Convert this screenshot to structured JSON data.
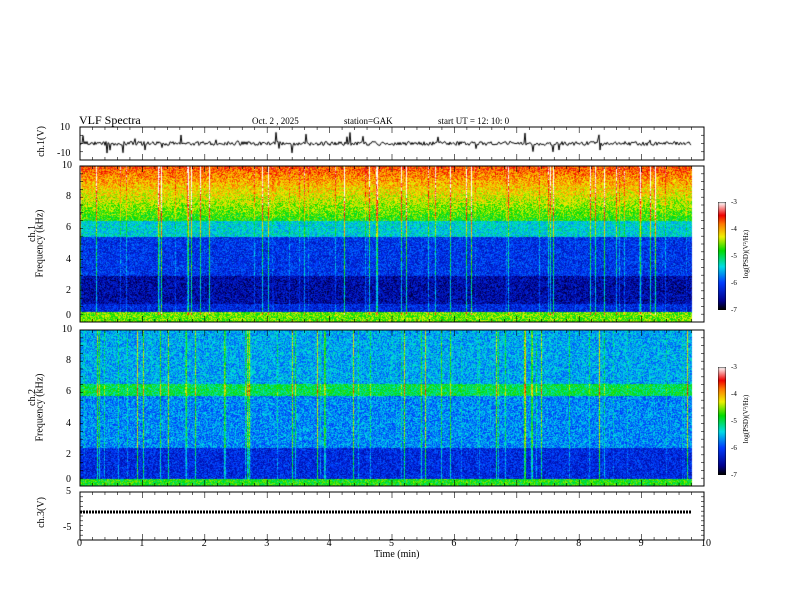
{
  "header": {
    "title": "VLF  Spectra",
    "date": "Oct. 2  , 2025",
    "station": "station=GAK",
    "start": "start  UT  =   12: 10: 0"
  },
  "chart_data": [
    {
      "type": "line",
      "name": "ch1-waveform",
      "ylabel": "ch.1(V)",
      "ylim": [
        -10,
        10
      ],
      "yticks": [
        "10",
        "-10"
      ],
      "xlim": [
        0,
        10
      ],
      "baseline_value": 0,
      "data_end_min": 9.8
    },
    {
      "type": "heatmap",
      "name": "ch1-spectrogram",
      "ylabel": "ch.1\nFrequency  (kHz)",
      "ylabel_ch": "ch.1",
      "ylabel_freq": "Frequency  (kHz)",
      "ylim": [
        0,
        10
      ],
      "yticks": [
        "0",
        "2",
        "4",
        "6",
        "8",
        "10"
      ],
      "xlim": [
        0,
        10
      ],
      "colorbar": {
        "label": "log(PSD)(V²/Hz)",
        "range": [
          -7,
          -3
        ],
        "ticks": [
          "-3",
          "-4",
          "-5",
          "-6",
          "-7"
        ]
      }
    },
    {
      "type": "heatmap",
      "name": "ch2-spectrogram",
      "ylabel_ch": "ch.2",
      "ylabel_freq": "Frequency  (kHz)",
      "ylim": [
        0,
        10
      ],
      "yticks": [
        "0",
        "2",
        "4",
        "6",
        "8",
        "10"
      ],
      "xlim": [
        0,
        10
      ],
      "colorbar": {
        "label": "log(PSD)(V²/Hz)",
        "range": [
          -7,
          -3
        ],
        "ticks": [
          "-3",
          "-4",
          "-5",
          "-6",
          "-7"
        ]
      }
    },
    {
      "type": "line",
      "name": "ch3-waveform",
      "ylabel": "ch.3(V)",
      "ylim": [
        -5,
        5
      ],
      "yticks": [
        "5",
        "-5"
      ],
      "xlim": [
        0,
        10
      ],
      "constant_value": 0
    }
  ],
  "xaxis": {
    "label": "Time  (min)",
    "ticks": [
      "0",
      "1",
      "2",
      "3",
      "4",
      "5",
      "6",
      "7",
      "8",
      "9",
      "10"
    ]
  }
}
